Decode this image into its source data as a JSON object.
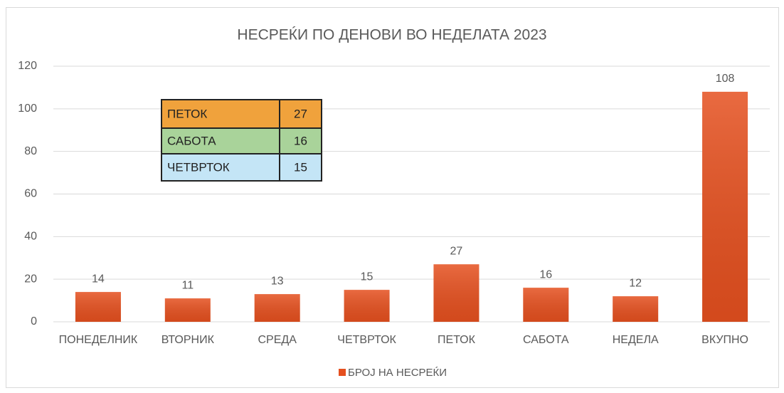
{
  "chart_data": {
    "type": "bar",
    "title": "НЕСРЕЌИ ПО ДЕНОВИ ВО НЕДЕЛАТА 2023",
    "categories": [
      "ПОНЕДЕЛНИК",
      "ВТОРНИК",
      "СРЕДА",
      "ЧЕТВРТОК",
      "ПЕТОК",
      "САБОТА",
      "НЕДЕЛА",
      "ВКУПНО"
    ],
    "series": [
      {
        "name": "БРОЈ НА НЕСРЕЌИ",
        "color": "#e5501f",
        "values": [
          14,
          11,
          13,
          15,
          27,
          16,
          12,
          108
        ]
      }
    ],
    "ylim": [
      0,
      120
    ],
    "yticks": [
      0,
      20,
      40,
      60,
      80,
      100,
      120
    ],
    "grid": true,
    "legend": "bottom",
    "table": {
      "rows": [
        [
          "ПЕТОК",
          27
        ],
        [
          "САБОТА",
          16
        ],
        [
          "ЧЕТВРТОК",
          15
        ]
      ],
      "colors": [
        "#f0a23c",
        "#a9d39a",
        "#c4e5f6"
      ]
    }
  }
}
